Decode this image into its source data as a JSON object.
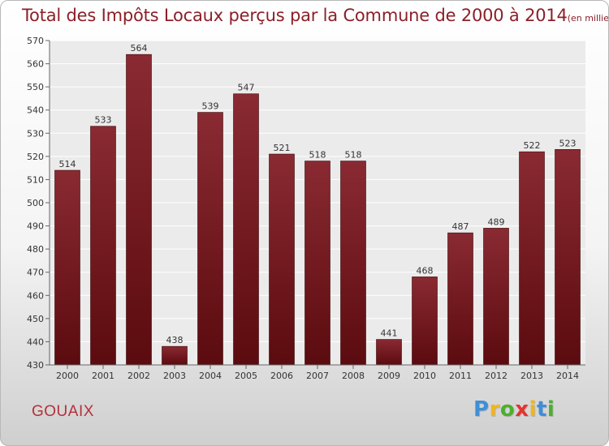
{
  "header": {
    "title_main": "Total des Impôts Locaux perçus par la Commune de 2000 à 2014",
    "title_unit": "(en milliers d'€)"
  },
  "commune": "GOUAIX",
  "brand": {
    "letters": [
      "P",
      "r",
      "o",
      "x",
      "i",
      "t",
      "i"
    ],
    "colors": [
      "#3d8fd6",
      "#f1b51c",
      "#4caf2f",
      "#e3342f",
      "#f1b51c",
      "#3d8fd6",
      "#4caf2f"
    ]
  },
  "chart_data": {
    "type": "bar",
    "categories": [
      "2000",
      "2001",
      "2002",
      "2003",
      "2004",
      "2005",
      "2006",
      "2007",
      "2008",
      "2009",
      "2010",
      "2011",
      "2012",
      "2013",
      "2014"
    ],
    "values": [
      514,
      533,
      564,
      438,
      539,
      547,
      521,
      518,
      518,
      441,
      468,
      487,
      489,
      522,
      523
    ],
    "ylim": [
      430,
      570
    ],
    "yticks": [
      430,
      440,
      450,
      460,
      470,
      480,
      490,
      500,
      510,
      520,
      530,
      540,
      550,
      560,
      570
    ],
    "grid": true,
    "bar_color_top": "#8a2a32",
    "bar_color_bottom": "#5b0b0f",
    "xlabel": "",
    "ylabel": ""
  }
}
